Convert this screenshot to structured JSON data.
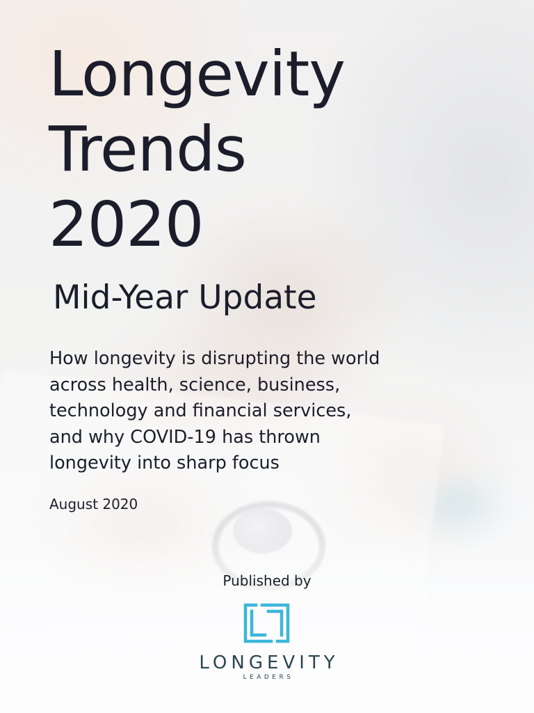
{
  "cover": {
    "title_lines": [
      "Longevity",
      "Trends",
      "2020"
    ],
    "subtitle": "Mid-Year Update",
    "description_lines": [
      "How longevity is disrupting the world",
      "across health, science, business,",
      "technology and financial services,",
      "and why COVID-19 has thrown",
      "longevity into sharp focus"
    ],
    "date": "August 2020",
    "published_by": "Published by"
  },
  "publisher": {
    "name": "LONGEVITY",
    "tagline": "LEADERS",
    "logo_color": "#3cb6d9",
    "text_color": "#2a4550"
  },
  "colors": {
    "title_text": "#1c1d2b"
  }
}
